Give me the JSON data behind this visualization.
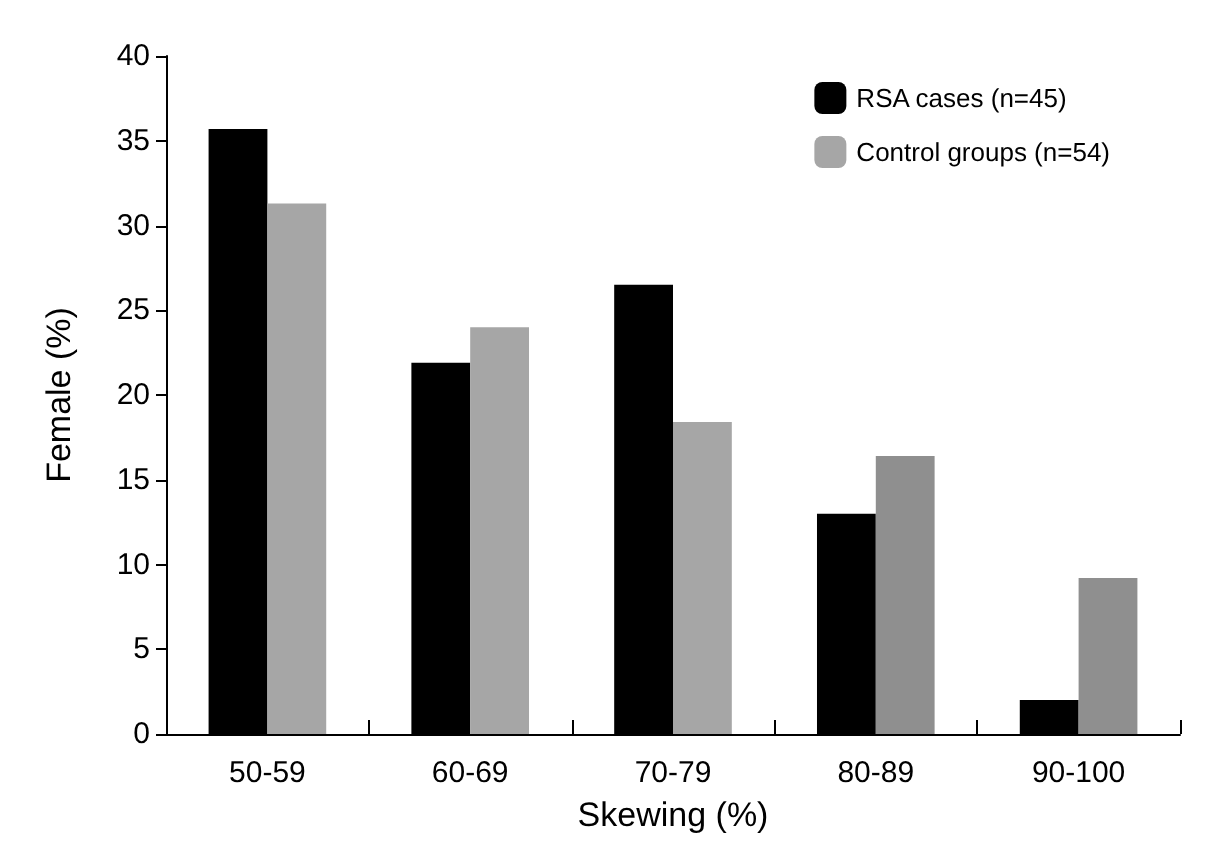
{
  "chart_data": {
    "type": "bar",
    "xlabel": "Skewing (%)",
    "ylabel": "Female (%)",
    "categories": [
      "50-59",
      "60-69",
      "70-79",
      "80-89",
      "90-100"
    ],
    "series": [
      {
        "name": "RSA cases (n=45)",
        "color": "#000000",
        "values": [
          35.7,
          21.9,
          26.5,
          13.0,
          2.0
        ]
      },
      {
        "name": "Control groups (n=54)",
        "color": "#a6a6a6",
        "colors": [
          "#a6a6a6",
          "#a6a6a6",
          "#a6a6a6",
          "#8f8f8f",
          "#8f8f8f"
        ],
        "values": [
          31.3,
          24.0,
          18.4,
          16.4,
          9.2
        ]
      }
    ],
    "ylim": [
      0,
      40
    ],
    "yticks": [
      0,
      5,
      10,
      15,
      20,
      25,
      30,
      35,
      40
    ],
    "grid": false,
    "legend": "top right"
  }
}
